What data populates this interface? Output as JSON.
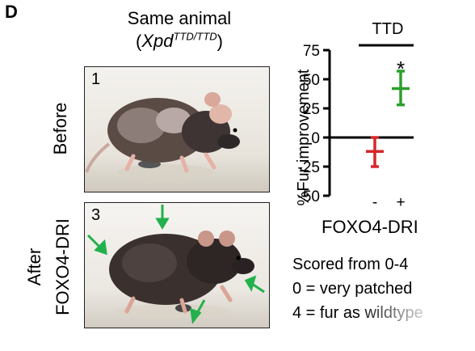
{
  "panel_letter": "D",
  "header": {
    "line1": "Same animal",
    "line2_open": "(",
    "line2_gene": "Xpd",
    "line2_sup": "TTD/TTD",
    "line2_close": ")"
  },
  "photos": {
    "before": {
      "label": "Before",
      "number": "1"
    },
    "after": {
      "label_line1": "After",
      "label_line2": "FOXO4-DRI",
      "number": "3"
    },
    "arrow_color": "#22b14c"
  },
  "caption": {
    "line1": "Scored from 0-4",
    "line2": "0 = very patched",
    "line3": "4 = fur as wildtype"
  },
  "chart_data": {
    "type": "scatter",
    "title": "TTD",
    "ylabel": "%Fur improvement",
    "xlabel": "FOXO4-DRI",
    "categories": [
      "-",
      "+"
    ],
    "ylim": [
      -50,
      75
    ],
    "yticks": [
      75,
      50,
      25,
      0,
      -25,
      -50
    ],
    "ytick_labels": [
      "75",
      "50",
      "25",
      "0",
      "-25",
      "-50"
    ],
    "series": [
      {
        "category": "-",
        "mean": -12,
        "error_low": -25,
        "error_high": 0,
        "color": "#d62728"
      },
      {
        "category": "+",
        "mean": 42,
        "error_low": 28,
        "error_high": 57,
        "color": "#2ca02c"
      }
    ],
    "annotations": [
      {
        "category": "+",
        "text": "*"
      }
    ],
    "grid": false
  }
}
